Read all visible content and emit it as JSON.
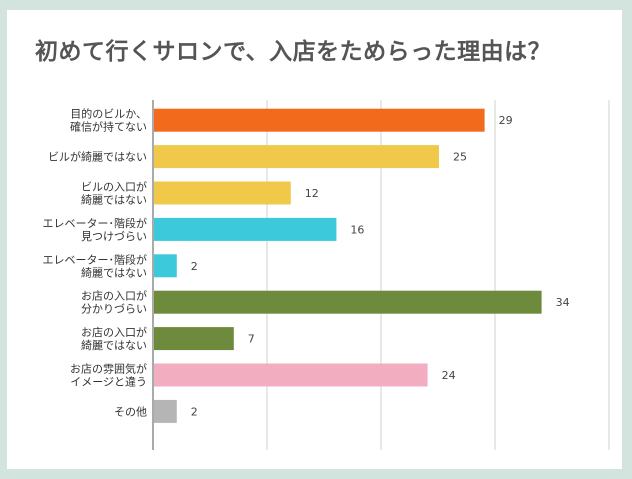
{
  "chart_data": {
    "type": "bar",
    "orientation": "horizontal",
    "title": "初めて行くサロンで、入店をためらった理由は？",
    "xlabel": "",
    "ylabel": "",
    "xlim": [
      0,
      40
    ],
    "grid": true,
    "categories": [
      [
        "目的のビルか、",
        "確信が持てない"
      ],
      [
        "ビルが綺麗ではない"
      ],
      [
        "ビルの入口が",
        "綺麗ではない"
      ],
      [
        "エレベーター･階段が",
        "見つけづらい"
      ],
      [
        "エレベーター･階段が",
        "綺麗ではない"
      ],
      [
        "お店の入口が",
        "分かりづらい"
      ],
      [
        "お店の入口が",
        "綺麗ではない"
      ],
      [
        "お店の雰囲気が",
        "イメージと違う"
      ],
      [
        "その他"
      ]
    ],
    "values": [
      29,
      25,
      12,
      16,
      2,
      34,
      7,
      24,
      2
    ],
    "colors": [
      "#f26b1d",
      "#f0c94a",
      "#f0c94a",
      "#3cc9db",
      "#3cc9db",
      "#6e8b3d",
      "#6e8b3d",
      "#f2adc1",
      "#b5b5b5"
    ]
  }
}
